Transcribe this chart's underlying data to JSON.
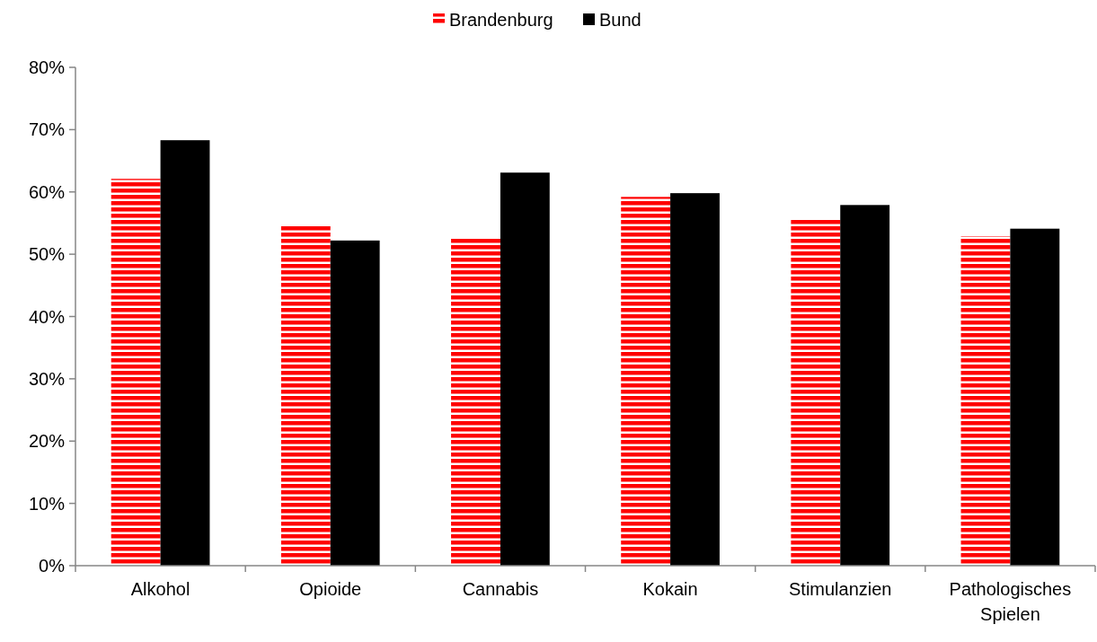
{
  "chart_data": {
    "type": "bar",
    "categories": [
      "Alkohol",
      "Opioide",
      "Cannabis",
      "Kokain",
      "Stimulanzien",
      "Pathologisches Spielen"
    ],
    "series": [
      {
        "name": "Brandenburg",
        "color": "#ff0000",
        "values": [
          62.1,
          54.6,
          52.5,
          59.2,
          55.6,
          52.9
        ]
      },
      {
        "name": "Bund",
        "color": "#000000",
        "values": [
          68.3,
          52.2,
          63.1,
          59.8,
          57.9,
          54.1
        ]
      }
    ],
    "ylim": [
      0,
      80
    ],
    "yticks": [
      {
        "value": 0,
        "label": "0%"
      },
      {
        "value": 10,
        "label": "10%"
      },
      {
        "value": 20,
        "label": "20%"
      },
      {
        "value": 30,
        "label": "30%"
      },
      {
        "value": 40,
        "label": "40%"
      },
      {
        "value": 50,
        "label": "50%"
      },
      {
        "value": 60,
        "label": "60%"
      },
      {
        "value": 70,
        "label": "70%"
      },
      {
        "value": 80,
        "label": "80%"
      }
    ],
    "legend": "top",
    "grid": false
  }
}
